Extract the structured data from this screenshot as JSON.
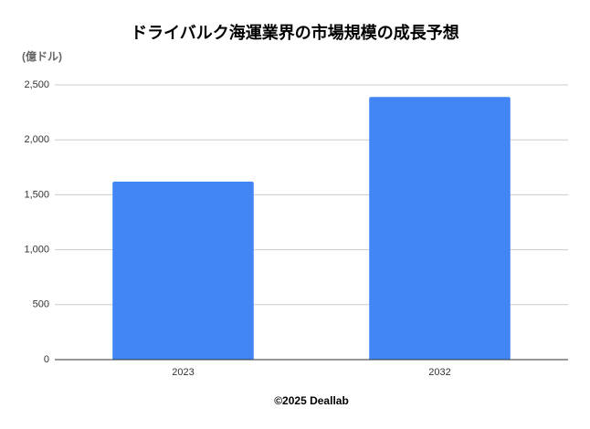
{
  "chart_data": {
    "type": "bar",
    "title": "ドライバルク海運業界の市場規模の成長予想",
    "y_label": "(億ドル)",
    "categories": [
      "2023",
      "2032"
    ],
    "values": [
      1620,
      2390
    ],
    "color": "#4285f4",
    "ylim": [
      0,
      2500
    ],
    "yticks": [
      0,
      500,
      {
        "value": 1000,
        "label": "1,000"
      },
      {
        "value": 1500,
        "label": "1,500"
      },
      {
        "value": 2000,
        "label": "2,000"
      },
      {
        "value": 2500,
        "label": "2,500"
      }
    ],
    "grid": true,
    "footer": "©2025 Deallab"
  }
}
